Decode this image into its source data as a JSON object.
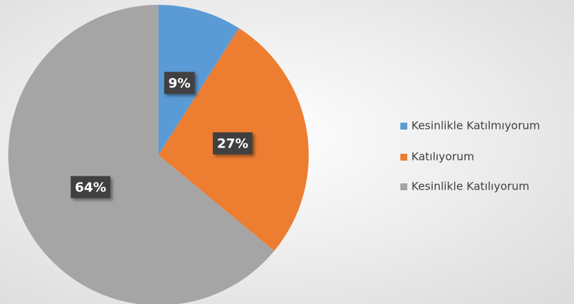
{
  "chart_data": {
    "type": "pie",
    "categories": [
      "Kesinlikle Katılmıyorum",
      "Katılıyorum",
      "Kesinlikle Katılıyorum"
    ],
    "values": [
      9,
      27,
      64
    ],
    "value_labels": [
      "9%",
      "27%",
      "64%"
    ],
    "colors": [
      "#5b9bd5",
      "#ed7d31",
      "#a5a5a5"
    ],
    "legend": "right"
  }
}
